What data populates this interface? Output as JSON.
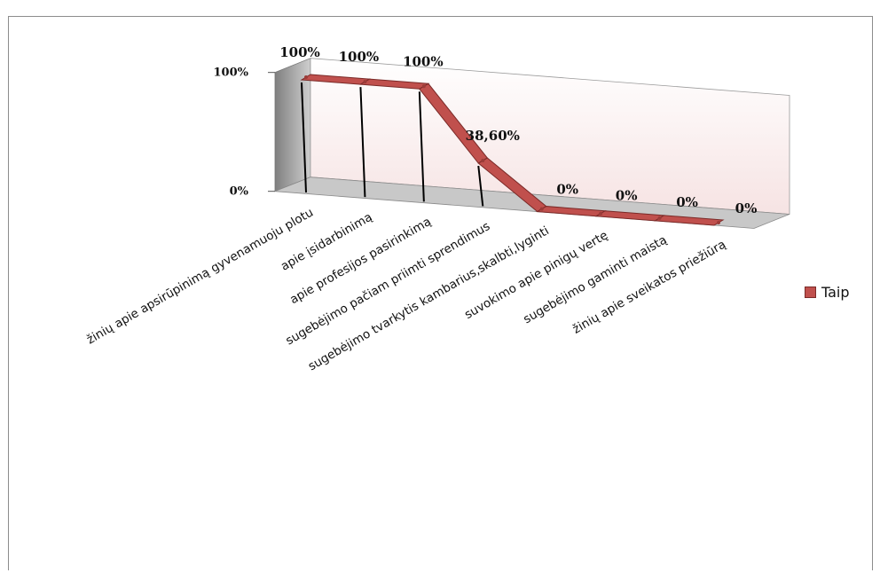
{
  "chart_data": {
    "type": "line",
    "style": "3d-ribbon",
    "categories": [
      "žinių apie apsirūpinimą gyvenamuoju plotu",
      "apie įsidarbinimą",
      "apie profesijos pasirinkimą",
      "sugebėjimo pačiam priimti sprendimus",
      "sugebėjimo tvarkytis kambarius,skalbti,lyginti",
      "suvokimo apie pinigų vertę",
      "sugebėjimo gaminti maistą",
      "žinių apie sveikatos priežiūrą"
    ],
    "series": [
      {
        "name": "Taip",
        "values": [
          100,
          100,
          100,
          38.6,
          0,
          0,
          0,
          0
        ],
        "data_labels": [
          "100%",
          "100%",
          "100%",
          "38,60%",
          "0%",
          "0%",
          "0%",
          "0%"
        ],
        "color": "#c0504d"
      }
    ],
    "y_ticks": [
      "0%",
      "100%"
    ],
    "ylim": [
      0,
      100
    ],
    "legend_position": "right",
    "wall_color": "#f9eaea",
    "floor_color": "#c8c8c8"
  },
  "legend": {
    "label": "Taip"
  }
}
